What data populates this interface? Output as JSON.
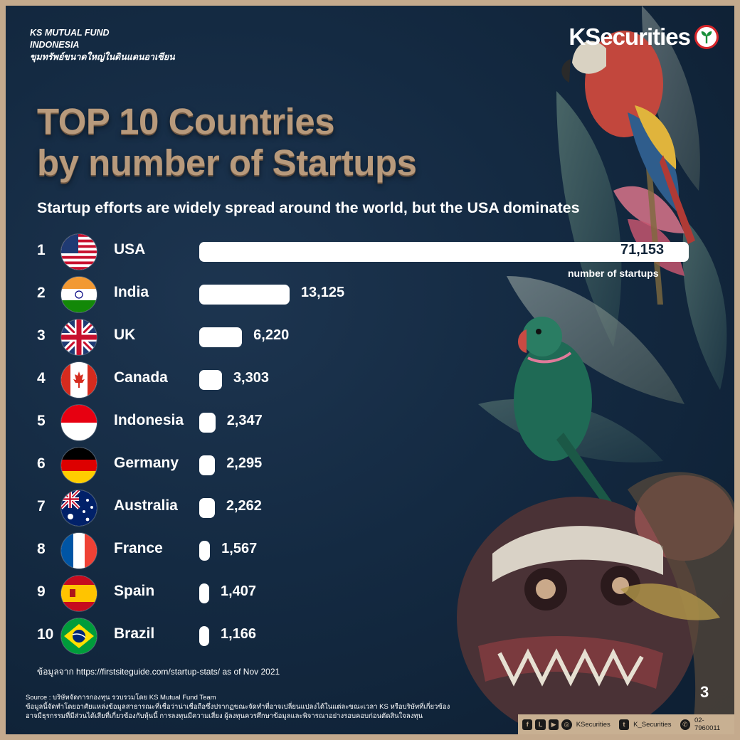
{
  "header": {
    "brand_line1": "KS MUTUAL FUND",
    "brand_line2": "INDONESIA",
    "brand_line3": "ขุมทรัพย์ขนาดใหญ่ในดินแดนอาเซียน",
    "logo_text": "KSecurities",
    "logo_icon": "ks-leaf-logo-icon"
  },
  "chart_data": {
    "type": "bar",
    "orientation": "horizontal",
    "title_line1": "TOP 10 Countries",
    "title_line2": "by number of Startups",
    "subtitle": "Startup efforts are widely spread around the world, but the USA dominates",
    "value_label": "number of startups",
    "ranks": [
      "1",
      "2",
      "3",
      "4",
      "5",
      "6",
      "7",
      "8",
      "9",
      "10"
    ],
    "categories": [
      "USA",
      "India",
      "UK",
      "Canada",
      "Indonesia",
      "Germany",
      "Australia",
      "France",
      "Spain",
      "Brazil"
    ],
    "values": [
      71153,
      13125,
      6220,
      3303,
      2347,
      2295,
      2262,
      1567,
      1407,
      1166
    ],
    "value_labels": [
      "71,153",
      "13,125",
      "6,220",
      "3,303",
      "2,347",
      "2,295",
      "2,262",
      "1,567",
      "1,407",
      "1,166"
    ],
    "flags": [
      "usa-flag-icon",
      "india-flag-icon",
      "uk-flag-icon",
      "canada-flag-icon",
      "indonesia-flag-icon",
      "germany-flag-icon",
      "australia-flag-icon",
      "france-flag-icon",
      "spain-flag-icon",
      "brazil-flag-icon"
    ],
    "bar_color": "#ffffff"
  },
  "data_source": "ข้อมูลจาก https://firstsiteguide.com/startup-stats/ as of Nov 2021",
  "footer": {
    "source": "Source : บริษัทจัดการกองทุน รวบรวมโดย KS Mutual Fund Team",
    "disclaimer1": "ข้อมูลนี้จัดทำโดยอาศัยแหล่งข้อมูลสาธารณะที่เชื่อว่าน่าเชื่อถือซึ่งปรากฏขณะจัดทำที่อาจเปลี่ยนแปลงได้ในแต่ละขณะเวลา KS หรือบริษัทที่เกี่ยวข้อง",
    "disclaimer2": "อาจมีธุรกรรมที่มีส่วนได้เสียที่เกี่ยวข้องกับหุ้นนี้ การลงทุนมีความเสี่ยง ผู้ลงทุนควรศึกษาข้อมูลและพิจารณาอย่างรอบคอบก่อนตัดสินใจลงทุน",
    "page_number": "3"
  },
  "social": {
    "handle": "KSecurities",
    "twitter": "K_Securities",
    "phone": "02-7960011"
  },
  "colors": {
    "background": "#142a42",
    "title": "#b89a7c",
    "frame": "#c4aa8d"
  }
}
